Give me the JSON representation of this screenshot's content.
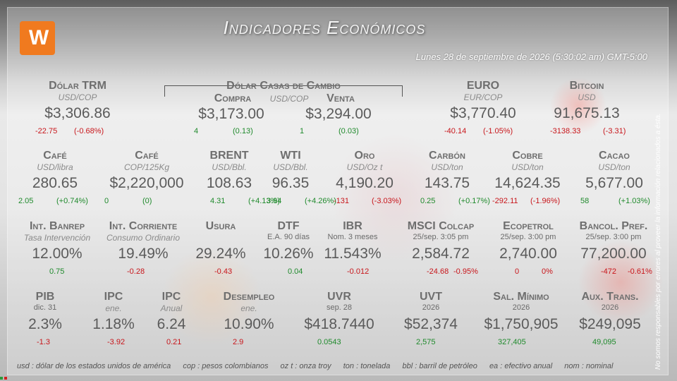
{
  "header": {
    "logo_text": "W",
    "title": "Indicadores Económicos",
    "date": "Lunes 28 de septiembre de 2026 (5:30:02 am) GMT-5:00",
    "side_note": "No somos responsables por errores al proveer la información relacionados a ésta."
  },
  "row1": {
    "trm": {
      "name": "Dólar TRM",
      "unit": "USD/COP",
      "value": "$3,306.86",
      "chg": "-22.75",
      "pct": "(-0.68%)"
    },
    "casas": {
      "name": "Dólar Casas de Cambio",
      "unit": "USD/COP",
      "compra": {
        "label": "Compra",
        "value": "$3,173.00",
        "chg": "4",
        "pct": "(0.13)"
      },
      "venta": {
        "label": "Venta",
        "value": "$3,294.00",
        "chg": "1",
        "pct": "(0.03)"
      }
    },
    "euro": {
      "name": "EURO",
      "unit": "EUR/COP",
      "value": "$3,770.40",
      "chg": "-40.14",
      "pct": "(-1.05%)"
    },
    "bitcoin": {
      "name": "Bitcoin",
      "unit": "USD",
      "value": "91,675.13",
      "chg": "-3138.33",
      "pct": "(-3.31)"
    }
  },
  "row2": [
    {
      "name": "Café",
      "unit": "USD/libra",
      "value": "280.65",
      "chg": "2.05",
      "pct": "(+0.74%)",
      "dir": "pos"
    },
    {
      "name": "Café",
      "unit": "COP/125Kg",
      "value": "$2,220,000",
      "chg": "0",
      "pct": "(0)",
      "dir": "pos"
    },
    {
      "name": "BRENT",
      "unit": "USD/Bbl.",
      "value": "108.63",
      "chg": "4.31",
      "pct": "(+4.13%)",
      "dir": "pos"
    },
    {
      "name": "WTI",
      "unit": "USD/Bbl.",
      "value": "96.35",
      "chg": "3.94",
      "pct": "(+4.26%)",
      "dir": "pos"
    },
    {
      "name": "Oro",
      "unit": "USD/Oz t",
      "value": "4,190.20",
      "chg": "-131",
      "pct": "(-3.03%)",
      "dir": "neg"
    },
    {
      "name": "Carbón",
      "unit": "USD/ton",
      "value": "143.75",
      "chg": "0.25",
      "pct": "(+0.17%)",
      "dir": "pos"
    },
    {
      "name": "Cobre",
      "unit": "USD/ton",
      "value": "14,624.35",
      "chg": "-292.11",
      "pct": "(-1.96%)",
      "dir": "neg"
    },
    {
      "name": "Cacao",
      "unit": "USD/ton",
      "value": "5,677.00",
      "chg": "58",
      "pct": "(+1.03%)",
      "dir": "pos"
    }
  ],
  "row3": [
    {
      "name": "Int. Banrep",
      "unit": "Tasa Intervención",
      "value": "12.00%",
      "chg": "0.75",
      "pct": "",
      "dir": "pos"
    },
    {
      "name": "Int. Corriente",
      "unit": "Consumo Ordinario",
      "value": "19.49%",
      "chg": "-0.28",
      "pct": "",
      "dir": "neg"
    },
    {
      "name": "Usura",
      "unit": "",
      "value": "29.24%",
      "chg": "-0.43",
      "pct": "",
      "dir": "neg"
    },
    {
      "name": "DTF",
      "unit": "E.A. 90 días",
      "value": "10.26%",
      "chg": "0.04",
      "pct": "",
      "dir": "pos"
    },
    {
      "name": "IBR",
      "unit": "Nom. 3 meses",
      "value": "11.543%",
      "chg": "-0.012",
      "pct": "",
      "dir": "neg"
    },
    {
      "name": "MSCI Colcap",
      "unit": "25/sep. 3:05 pm",
      "value": "2,584.72",
      "chg": "-24.68",
      "pct": "-0.95%",
      "dir": "neg"
    },
    {
      "name": "Ecopetrol",
      "unit": "25/sep. 3:00 pm",
      "value": "2,740.00",
      "chg": "0",
      "pct": "0%",
      "dir": "neg"
    },
    {
      "name": "Bancol. Pref.",
      "unit": "25/sep. 3:00 pm",
      "value": "77,200.00",
      "chg": "-472",
      "pct": "-0.61%",
      "dir": "neg"
    }
  ],
  "row4": [
    {
      "name": "PIB",
      "unit": "dic. 31",
      "value": "2.3%",
      "chg": "-1.3",
      "dir": "neg"
    },
    {
      "name": "IPC",
      "unit": "ene.",
      "value": "1.18%",
      "chg": "-3.92",
      "dir": "neg"
    },
    {
      "name": "IPC",
      "unit": "Anual",
      "value": "6.24",
      "chg": "0.21",
      "dir": "neg"
    },
    {
      "name": "Desempleo",
      "unit": "ene.",
      "value": "10.90%",
      "chg": "2.9",
      "dir": "neg"
    },
    {
      "name": "UVR",
      "unit": "sep. 28",
      "value": "$418.7440",
      "chg": "0.0543",
      "dir": "pos"
    },
    {
      "name": "UVT",
      "unit": "2026",
      "value": "$52,374",
      "chg": "2,575",
      "dir": "pos"
    },
    {
      "name": "Sal. Mínimo",
      "unit": "2026",
      "value": "$1,750,905",
      "chg": "327,405",
      "dir": "pos"
    },
    {
      "name": "Aux. Trans.",
      "unit": "2026",
      "value": "$249,095",
      "chg": "49,095",
      "dir": "pos"
    }
  ],
  "footer": [
    "usd : dólar de los estados unidos de américa",
    "cop : pesos colombianos",
    "oz t : onza troy",
    "ton : tonelada",
    "bbl : barril de petróleo",
    "ea : efectivo anual",
    "nom : nominal"
  ]
}
